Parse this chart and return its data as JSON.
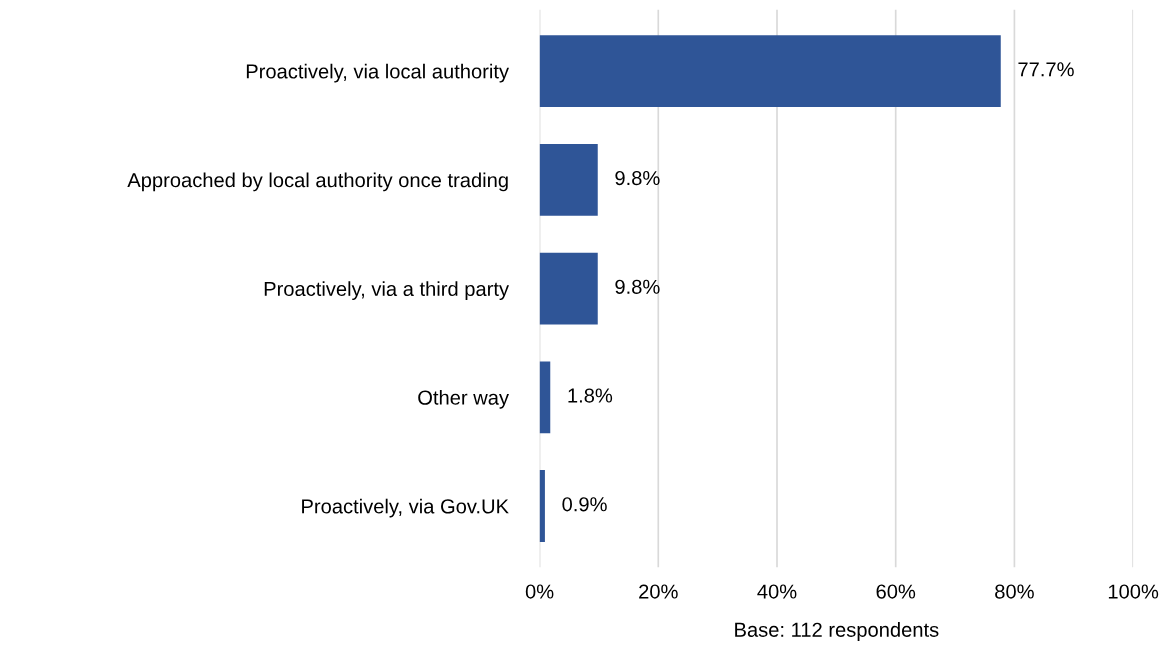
{
  "chart_data": {
    "type": "bar",
    "orientation": "horizontal",
    "xlabel": "Base: 112 respondents",
    "categories": [
      "Proactively, via local authority",
      "Approached by local authority once trading",
      "Proactively, via a third party",
      "Other way",
      "Proactively, via Gov.UK"
    ],
    "values": [
      77.7,
      9.8,
      9.8,
      1.8,
      0.9
    ],
    "value_labels": [
      "77.7%",
      "9.8%",
      "9.8%",
      "1.8%",
      "0.9%"
    ],
    "color": "#2f5597",
    "xlim": [
      0,
      100
    ],
    "xticks": [
      {
        "value": 0,
        "label": "0%"
      },
      {
        "value": 20,
        "label": "20%"
      },
      {
        "value": 40,
        "label": "40%"
      },
      {
        "value": 60,
        "label": "60%"
      },
      {
        "value": 80,
        "label": "80%"
      },
      {
        "value": 100,
        "label": "100%"
      }
    ],
    "grid": "x",
    "legend": false
  }
}
